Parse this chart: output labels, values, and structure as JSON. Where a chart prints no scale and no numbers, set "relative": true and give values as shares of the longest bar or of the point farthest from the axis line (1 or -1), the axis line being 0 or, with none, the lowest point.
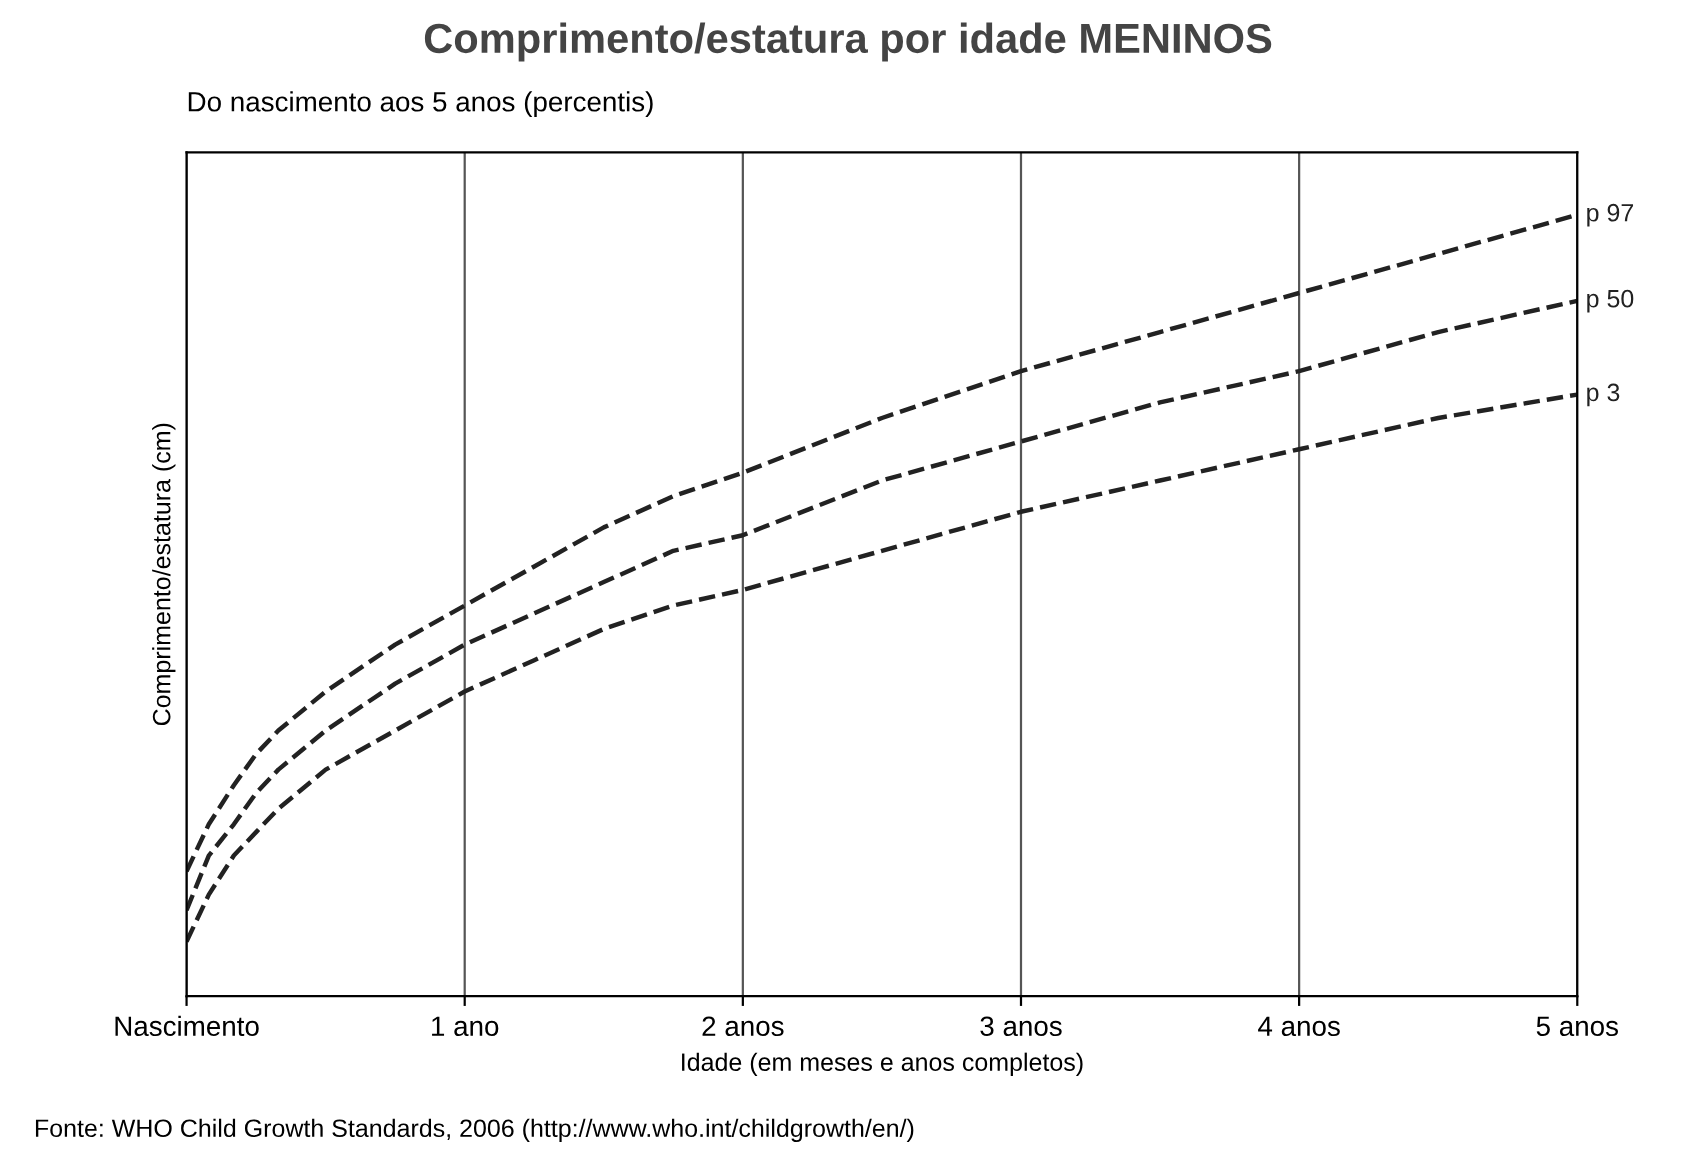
{
  "chart_data": {
    "type": "line",
    "title": "Comprimento/estatura por idade MENINOS",
    "subtitle": "Do nascimento aos 5 anos (percentis)",
    "xlabel": "Idade (em meses e anos completos)",
    "ylabel": "Comprimento/estatura (cm)",
    "annotations": [
      "Fonte: WHO Child Growth Standards, 2006 (http://www.who.int/childgrowth/en/)"
    ],
    "x": [
      0,
      0.08,
      0.17,
      0.25,
      0.33,
      0.5,
      0.75,
      1,
      1.25,
      1.5,
      1.75,
      2,
      2.5,
      3,
      3.5,
      4,
      4.5,
      5
    ],
    "relative": true,
    "xlim": [
      0,
      5
    ],
    "xticks": [
      {
        "value": 0,
        "label": "Nascimento"
      },
      {
        "value": 1,
        "label": "1 ano"
      },
      {
        "value": 2,
        "label": "2 anos"
      },
      {
        "value": 3,
        "label": "3 anos"
      },
      {
        "value": 4,
        "label": "4 anos"
      },
      {
        "value": 5,
        "label": "5 anos"
      }
    ],
    "grid": "x",
    "legend": false,
    "line_style": "dashed",
    "marker": "none",
    "series": [
      {
        "name": "p 97",
        "color": "#222222",
        "values": [
          0.16,
          0.22,
          0.27,
          0.31,
          0.34,
          0.39,
          0.45,
          0.5,
          0.55,
          0.6,
          0.64,
          0.67,
          0.74,
          0.8,
          0.85,
          0.9,
          0.95,
          1
        ]
      },
      {
        "name": "p 50",
        "color": "#222222",
        "values": [
          0.11,
          0.18,
          0.22,
          0.26,
          0.29,
          0.34,
          0.4,
          0.45,
          0.49,
          0.53,
          0.57,
          0.59,
          0.66,
          0.71,
          0.76,
          0.8,
          0.85,
          0.89
        ]
      },
      {
        "name": "p 3",
        "color": "#222222",
        "values": [
          0.07,
          0.13,
          0.18,
          0.21,
          0.24,
          0.29,
          0.34,
          0.39,
          0.43,
          0.47,
          0.5,
          0.52,
          0.57,
          0.62,
          0.66,
          0.7,
          0.74,
          0.77
        ]
      }
    ]
  }
}
